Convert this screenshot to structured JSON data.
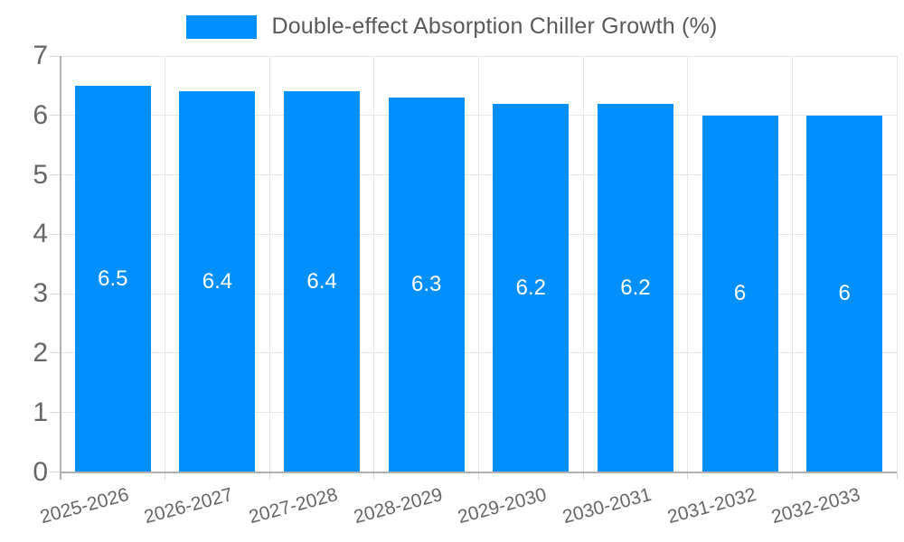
{
  "legend": {
    "label": "Double-effect Absorption Chiller Growth (%)"
  },
  "colors": {
    "bar": "#008FFB",
    "grid": "#e7e7e7",
    "axis": "#b1b1b1",
    "tick": "#d7d7d7",
    "axis_label": "#666666",
    "legend_text": "#595959",
    "data_label": "#ffffff",
    "background": "#ffffff"
  },
  "chart_data": {
    "type": "bar",
    "title": "Double-effect Absorption Chiller Growth (%)",
    "categories": [
      "2025-2026",
      "2026-2027",
      "2027-2028",
      "2028-2029",
      "2029-2030",
      "2030-2031",
      "2031-2032",
      "2032-2033"
    ],
    "values": [
      6.5,
      6.4,
      6.4,
      6.3,
      6.2,
      6.2,
      6,
      6
    ],
    "data_labels": [
      "6.5",
      "6.4",
      "6.4",
      "6.3",
      "6.2",
      "6.2",
      "6",
      "6"
    ],
    "xlabel": "",
    "ylabel": "",
    "ylim": [
      0,
      7
    ],
    "yticks": [
      0,
      1,
      2,
      3,
      4,
      5,
      6,
      7
    ],
    "grid": true,
    "legend_position": "top",
    "xtick_rotation": -15
  }
}
